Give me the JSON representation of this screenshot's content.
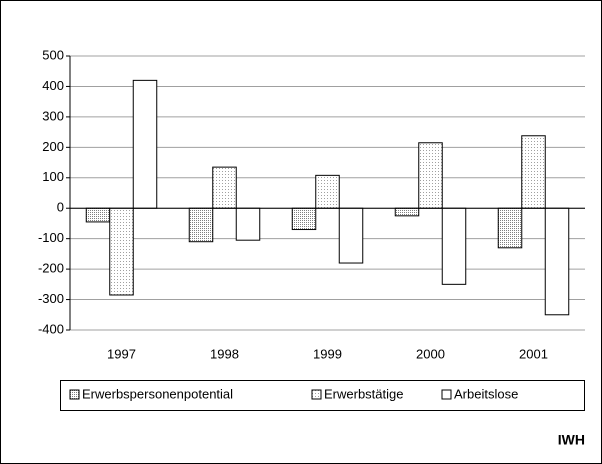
{
  "chart_data": {
    "type": "bar",
    "categories": [
      "1997",
      "1998",
      "1999",
      "2000",
      "2001"
    ],
    "series": [
      {
        "name": "Erwerbspersonenpotential",
        "color": "#808080",
        "values": [
          -45,
          -110,
          -70,
          -25,
          -130
        ]
      },
      {
        "name": "Erwerbstätige",
        "color": "#a0a0a0",
        "values": [
          -285,
          135,
          108,
          215,
          238
        ]
      },
      {
        "name": "Arbeitslose",
        "color": "#ffffff",
        "values": [
          420,
          -105,
          -180,
          -250,
          -350
        ]
      }
    ],
    "ylim": [
      -400,
      500
    ],
    "yticks": [
      -400,
      -300,
      -200,
      -100,
      0,
      100,
      200,
      300,
      400,
      500
    ],
    "grid": true,
    "legend": "bottom",
    "source": "IWH"
  }
}
